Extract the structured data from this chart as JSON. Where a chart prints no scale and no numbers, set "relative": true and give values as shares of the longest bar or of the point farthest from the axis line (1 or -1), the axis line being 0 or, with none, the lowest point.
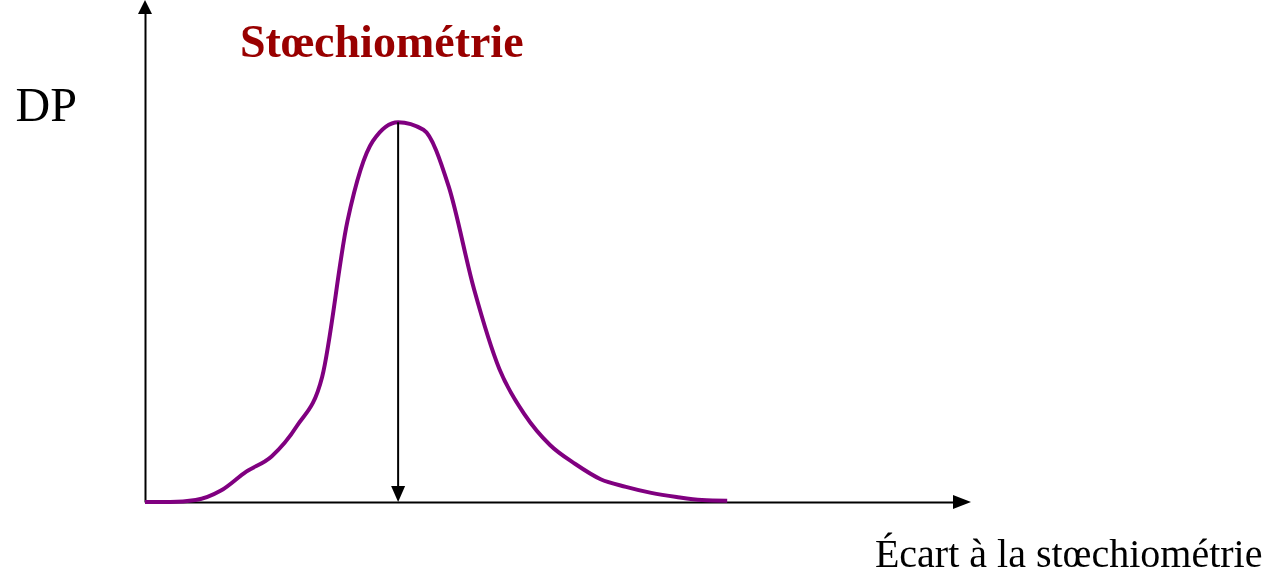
{
  "chart_data": {
    "type": "line",
    "title": "Stœchiométrie",
    "xlabel": "Écart à la stœchiométrie",
    "ylabel": "DP",
    "relative": true,
    "categories": [
      null,
      null,
      null,
      null,
      null,
      null,
      null,
      null,
      null,
      null,
      null,
      null,
      null,
      null,
      null,
      null,
      null,
      null,
      null,
      null,
      null,
      null,
      null,
      null,
      null,
      null,
      null,
      null,
      null,
      null,
      null,
      null,
      null
    ],
    "series": [
      {
        "color": "#800080",
        "values": [
          0,
          0,
          0.005,
          0.03,
          0.08,
          0.12,
          0.2,
          0.33,
          0.74,
          0.95,
          1,
          0.98,
          0.83,
          0.56,
          0.35,
          0.23,
          0.15,
          0.1,
          0.06,
          0.04,
          0.024,
          0.013,
          0.005,
          0.003,
          null,
          null,
          null,
          null,
          null,
          null,
          null,
          null,
          null
        ]
      }
    ]
  }
}
